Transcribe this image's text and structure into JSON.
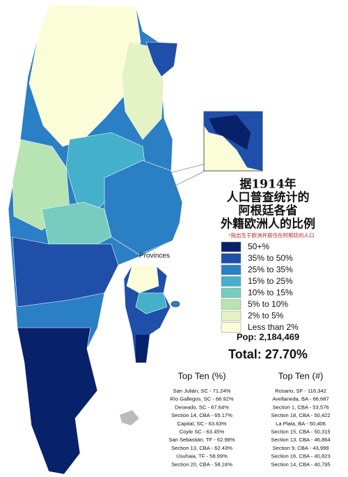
{
  "title_lines": [
    "据1914年",
    "人口普查统计的",
    "阿根廷各省",
    "外籍欧洲人的比例"
  ],
  "note": "*指出生于欧洲并居住在阿根廷的人口",
  "inset_label": "Provinces",
  "legend": [
    {
      "label": "50+%",
      "color": "#08216b"
    },
    {
      "label": "35% to 50%",
      "color": "#1f4fa8"
    },
    {
      "label": "25% to 35%",
      "color": "#2b7fc4"
    },
    {
      "label": "15% to 25%",
      "color": "#44b0c9"
    },
    {
      "label": "10% to 15%",
      "color": "#78ccbf"
    },
    {
      "label": "5% to 10%",
      "color": "#b8e3b3"
    },
    {
      "label": "2% to 5%",
      "color": "#e4f3c4"
    },
    {
      "label": "Less than 2%",
      "color": "#fbfdd9"
    }
  ],
  "pop": "Pop: 2,184,469",
  "total": "Total: 27.70%",
  "top_percent": {
    "title": "Top Ten (%)",
    "items": [
      "San Julián, SC - 71.24%",
      "Río Gallegos, SC - 68.92%",
      "Deseado, SC - 67.64%",
      "Section 14, CBA - 65.17%",
      "Capital, SC - 63.63%",
      "Coyle SC - 63.45%",
      "San Sebastián, TF - 62.98%",
      "Section 13, CBA - 62.43%",
      "Usuhaia, TF - 58.99%",
      "Section 20, CBA - 58.24%"
    ]
  },
  "top_count": {
    "title": "Top Ten (#)",
    "items": [
      "Rosario, SF - 116,342",
      "Avellaneda, BA - 66,687",
      "Section 1, CBA - 53,576",
      "Section 18, CBA - 50,422",
      "La Plata, BA - 50,406",
      "Section 15, CBA - 50,315",
      "Section 13, CBA - 46,864",
      "Section 9, CBA - 43,999",
      "Section 16, CBA - 40,823",
      "Section 14, CBA - 40,795"
    ]
  }
}
